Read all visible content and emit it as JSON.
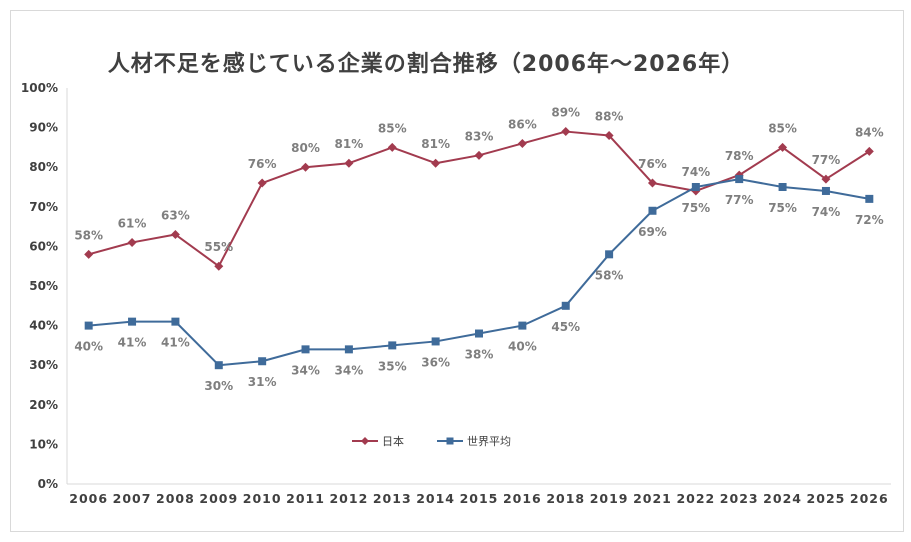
{
  "chart_data": {
    "type": "line",
    "title": "人材不足を感じている企業の割合推移（2006年～2026年）",
    "categories": [
      "2006",
      "2007",
      "2008",
      "2009",
      "2010",
      "2011",
      "2012",
      "2013",
      "2014",
      "2015",
      "2016",
      "2018",
      "2019",
      "2021",
      "2022",
      "2023",
      "2024",
      "2025",
      "2026"
    ],
    "y_ticks": [
      "0%",
      "10%",
      "20%",
      "30%",
      "40%",
      "50%",
      "60%",
      "70%",
      "80%",
      "90%",
      "100%"
    ],
    "ylim": [
      0,
      100
    ],
    "grid": false,
    "legend_position": "bottom-left",
    "series": [
      {
        "name": "日本",
        "color": "#a23b4f",
        "marker": "diamond",
        "values": [
          58,
          61,
          63,
          55,
          76,
          80,
          81,
          85,
          81,
          83,
          86,
          89,
          88,
          76,
          74,
          78,
          85,
          77,
          84
        ],
        "labels": [
          "58%",
          "61%",
          "63%",
          "55%",
          "76%",
          "80%",
          "81%",
          "85%",
          "81%",
          "83%",
          "86%",
          "89%",
          "88%",
          "76%",
          "74%",
          "78%",
          "85%",
          "77%",
          "84%"
        ],
        "label_side": [
          "above",
          "above",
          "above",
          "above",
          "above",
          "above",
          "above",
          "above",
          "above",
          "above",
          "above",
          "above",
          "above",
          "above",
          "above",
          "above",
          "above",
          "above",
          "above"
        ]
      },
      {
        "name": "世界平均",
        "color": "#3f6b9a",
        "marker": "square",
        "values": [
          40,
          41,
          41,
          30,
          31,
          34,
          34,
          35,
          36,
          38,
          40,
          45,
          58,
          69,
          75,
          77,
          75,
          74,
          72
        ],
        "labels": [
          "40%",
          "41%",
          "41%",
          "30%",
          "31%",
          "34%",
          "34%",
          "35%",
          "36%",
          "38%",
          "40%",
          "45%",
          "58%",
          "69%",
          "75%",
          "77%",
          "75%",
          "74%",
          "72%"
        ],
        "label_side": [
          "below",
          "below",
          "below",
          "below",
          "below",
          "below",
          "below",
          "below",
          "below",
          "below",
          "below",
          "below",
          "below",
          "below",
          "below",
          "below",
          "below",
          "below",
          "below"
        ]
      }
    ]
  }
}
